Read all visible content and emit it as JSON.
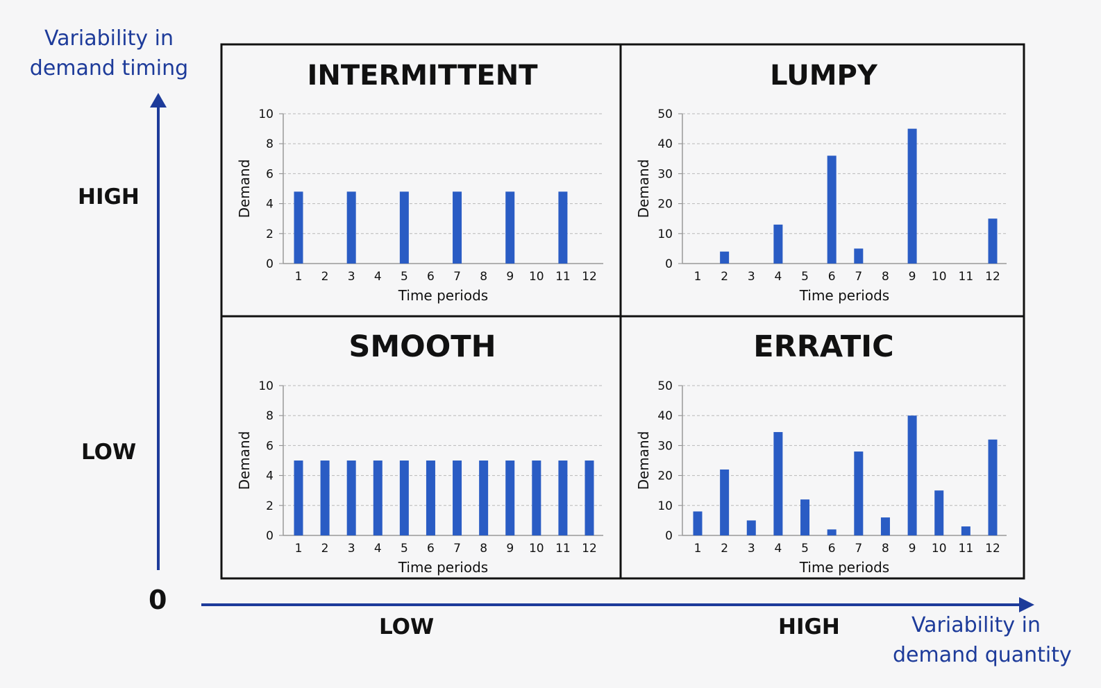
{
  "axes": {
    "y_title_line1": "Variability in",
    "y_title_line2": "demand timing",
    "x_title_line1": "Variability in",
    "x_title_line2": "demand quantity",
    "y_high": "HIGH",
    "y_low": "LOW",
    "x_low": "LOW",
    "x_high": "HIGH",
    "origin": "0"
  },
  "colors": {
    "bar": "#2a5cc4",
    "axis_arrow": "#1d3b9a",
    "grid": "#b8b8b8",
    "frame": "#111111"
  },
  "chart_data": [
    {
      "type": "bar",
      "title": "INTERMITTENT",
      "xlabel": "Time periods",
      "ylabel": "Demand",
      "categories": [
        "1",
        "2",
        "3",
        "4",
        "5",
        "6",
        "7",
        "8",
        "9",
        "10",
        "11",
        "12"
      ],
      "values": [
        4.8,
        0,
        4.8,
        0,
        4.8,
        0,
        4.8,
        0,
        4.8,
        0,
        4.8,
        0
      ],
      "ylim": [
        0,
        10
      ],
      "yticks": [
        "0",
        "2",
        "4",
        "6",
        "8",
        "10"
      ],
      "grid": true
    },
    {
      "type": "bar",
      "title": "LUMPY",
      "xlabel": "Time periods",
      "ylabel": "Demand",
      "categories": [
        "1",
        "2",
        "3",
        "4",
        "5",
        "6",
        "7",
        "8",
        "9",
        "10",
        "11",
        "12"
      ],
      "values": [
        0,
        4,
        0,
        13,
        0,
        36,
        5,
        0,
        45,
        0,
        0,
        15
      ],
      "ylim": [
        0,
        50
      ],
      "yticks": [
        "0",
        "10",
        "20",
        "30",
        "40",
        "50"
      ],
      "grid": true
    },
    {
      "type": "bar",
      "title": "SMOOTH",
      "xlabel": "Time periods",
      "ylabel": "Demand",
      "categories": [
        "1",
        "2",
        "3",
        "4",
        "5",
        "6",
        "7",
        "8",
        "9",
        "10",
        "11",
        "12"
      ],
      "values": [
        5,
        5,
        5,
        5,
        5,
        5,
        5,
        5,
        5,
        5,
        5,
        5
      ],
      "ylim": [
        0,
        10
      ],
      "yticks": [
        "0",
        "2",
        "4",
        "6",
        "8",
        "10"
      ],
      "grid": true
    },
    {
      "type": "bar",
      "title": "ERRATIC",
      "xlabel": "Time periods",
      "ylabel": "Demand",
      "categories": [
        "1",
        "2",
        "3",
        "4",
        "5",
        "6",
        "7",
        "8",
        "9",
        "10",
        "11",
        "12"
      ],
      "values": [
        8,
        22,
        5,
        34.5,
        12,
        2,
        28,
        6,
        40,
        15,
        3,
        32
      ],
      "ylim": [
        0,
        50
      ],
      "yticks": [
        "0",
        "10",
        "20",
        "30",
        "40",
        "50"
      ],
      "grid": true
    }
  ]
}
